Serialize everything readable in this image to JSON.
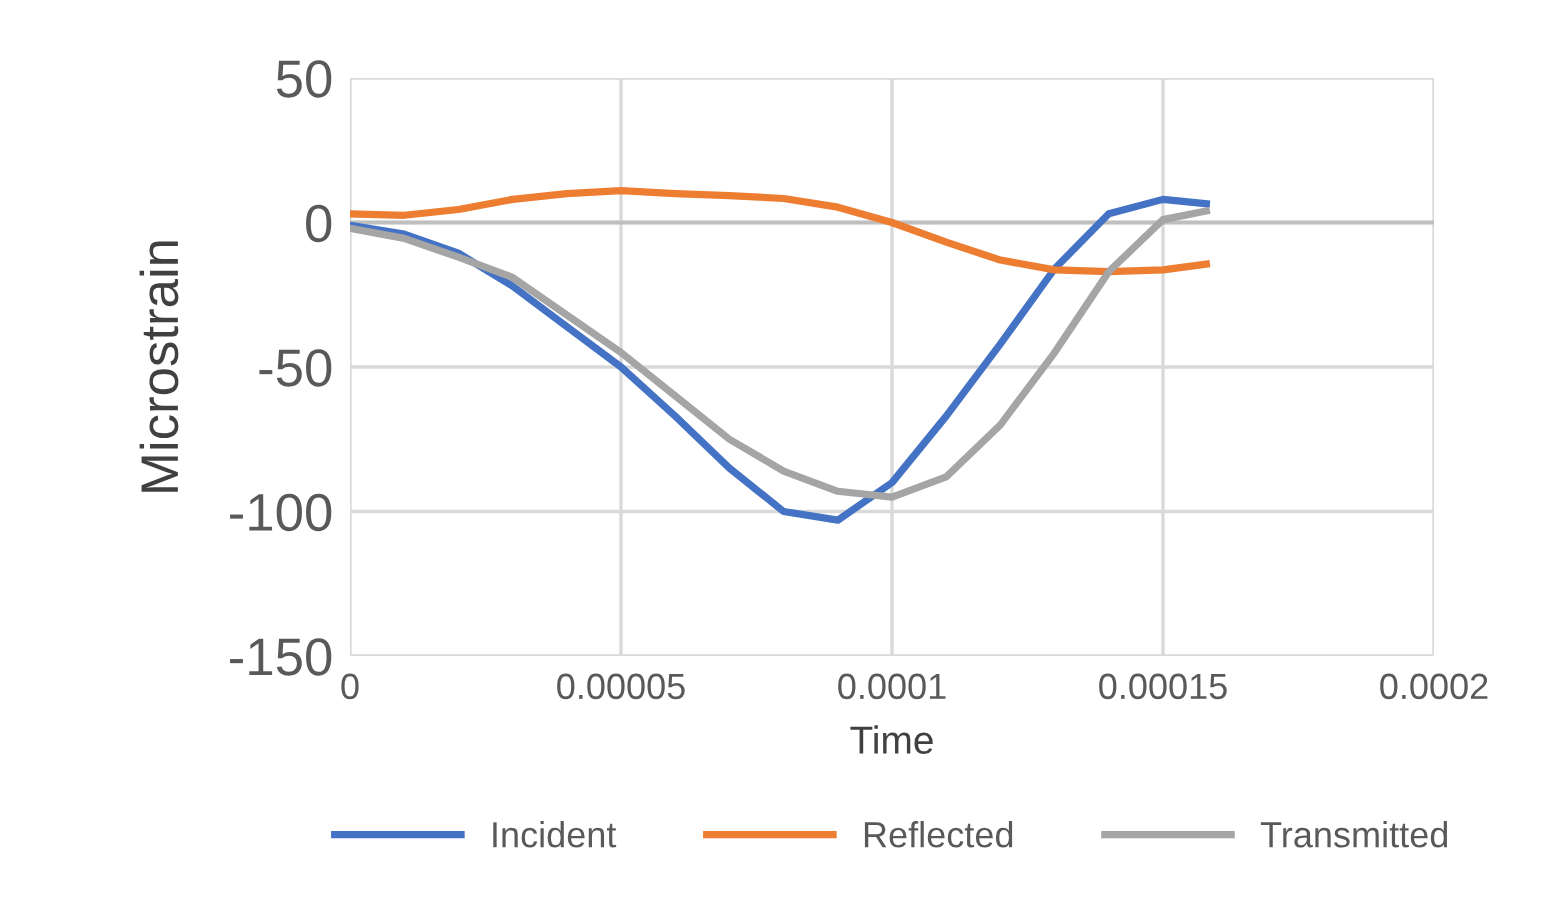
{
  "chart_data": {
    "type": "line",
    "xlabel": "Time",
    "ylabel": "Microstrain",
    "xlim": [
      0,
      0.0002
    ],
    "ylim": [
      -150,
      50
    ],
    "xticks": [
      0,
      {
        "value": 5e-05,
        "label": "0.00005"
      },
      0.0001,
      0.00015,
      0.0002
    ],
    "yticks": [
      -150,
      -100,
      -50,
      0,
      50
    ],
    "grid": true,
    "legend": "bottom",
    "marker": "none",
    "line_style": "solid",
    "x": [
      0,
      1e-05,
      2e-05,
      3e-05,
      4e-05,
      5e-05,
      6e-05,
      7e-05,
      8e-05,
      9e-05,
      0.0001,
      0.00011,
      0.00012,
      0.00013,
      0.00014,
      0.00015,
      0.000158
    ],
    "series": [
      {
        "name": "Incident",
        "color": "#4472c4",
        "values": [
          -1,
          -4,
          -10.6,
          -22,
          -36,
          -50,
          -67,
          -85,
          -100,
          -103,
          -90,
          -67,
          -42,
          -16,
          3,
          8,
          6.5
        ]
      },
      {
        "name": "Reflected",
        "color": "#ed7d31",
        "values": [
          3,
          2.5,
          4.5,
          8,
          10,
          11,
          10,
          9.3,
          8.3,
          5.3,
          0,
          -6.8,
          -13,
          -16.4,
          -17,
          -16.4,
          -14.4
        ]
      },
      {
        "name": "Transmitted",
        "color": "#a5a5a5",
        "values": [
          -2,
          -5.5,
          -12,
          -19,
          -32,
          -45,
          -60,
          -75,
          -86,
          -93,
          -95,
          -88,
          -70,
          -45,
          -17,
          1,
          4
        ]
      }
    ]
  }
}
